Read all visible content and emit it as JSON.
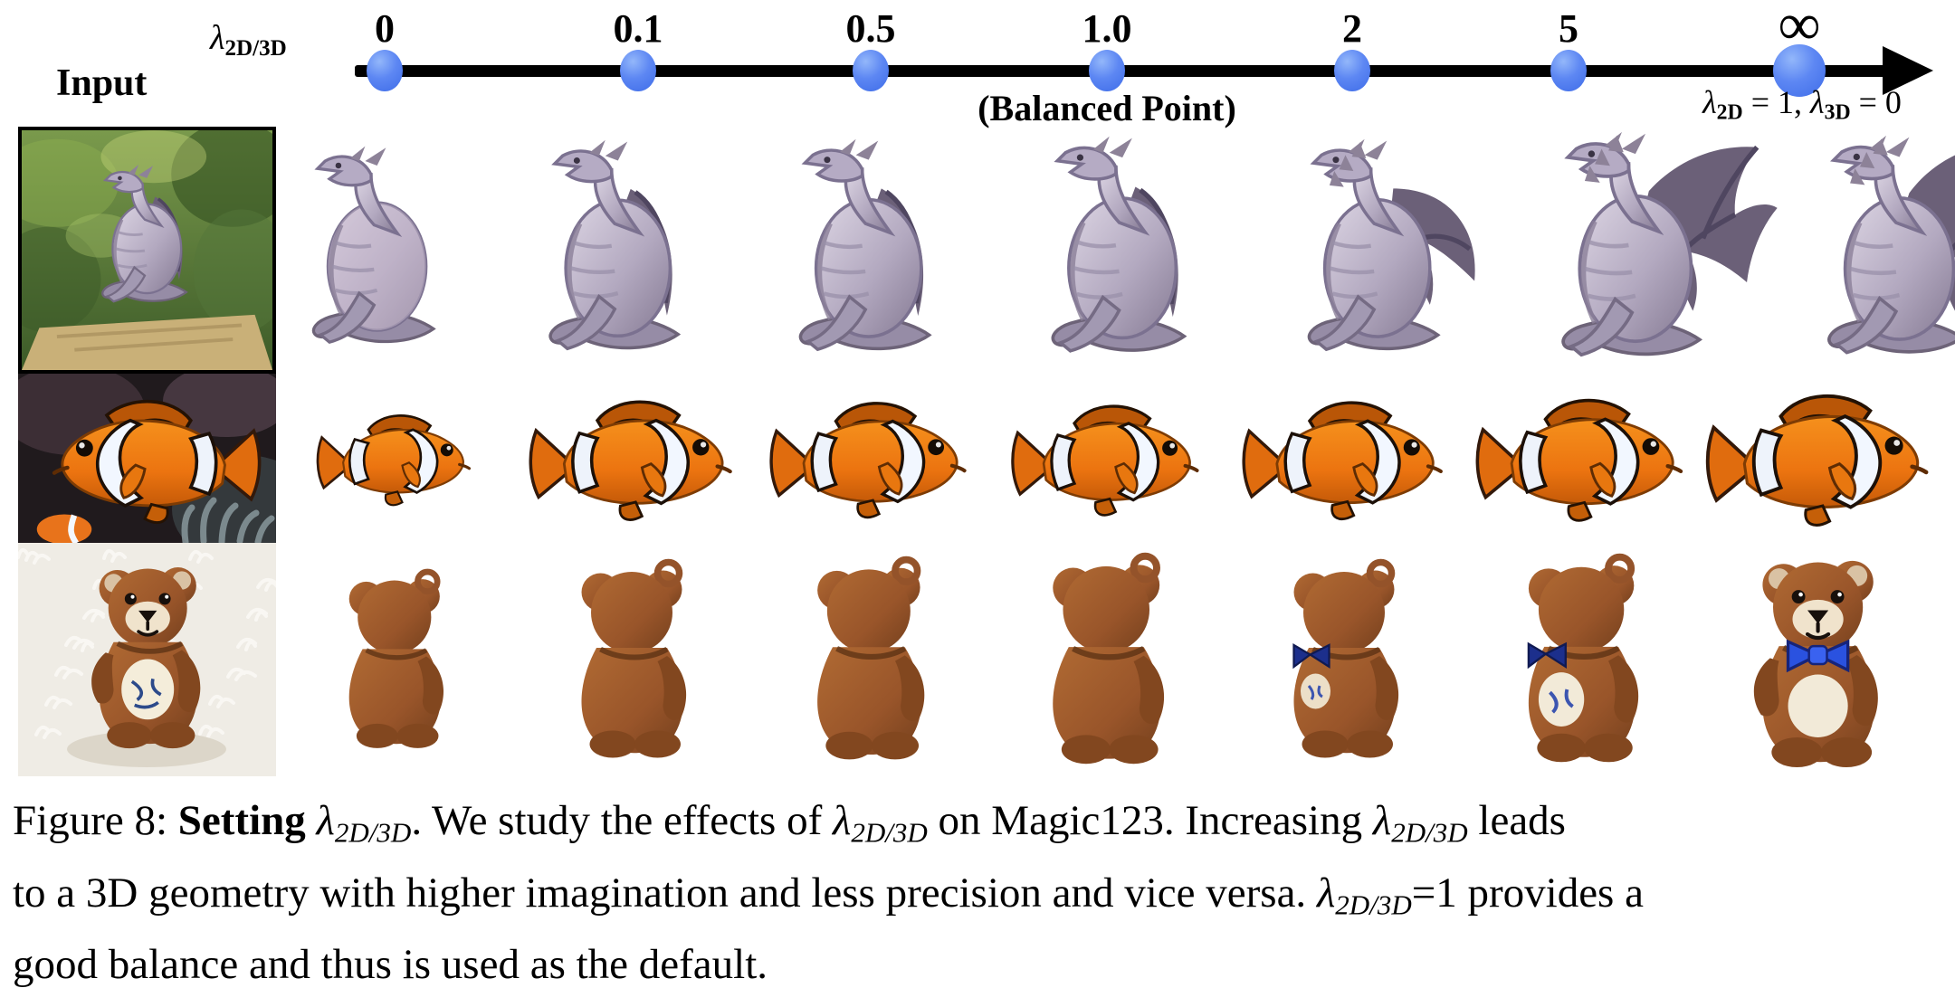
{
  "figure": {
    "input_label": "Input",
    "axis": {
      "parameter_label_segments": [
        {
          "t": "λ",
          "s": "i"
        },
        {
          "t": "2D/3D",
          "s": "subb"
        }
      ],
      "ticks": [
        "0",
        "0.1",
        "0.5",
        "1.0",
        "2",
        "5",
        "∞"
      ],
      "balanced_point_label": "(Balanced Point)",
      "end_condition_segments": [
        {
          "t": "λ",
          "s": "i"
        },
        {
          "t": "2D",
          "s": "subb"
        },
        {
          "t": " = 1, ",
          "s": "n"
        },
        {
          "t": "λ",
          "s": "i"
        },
        {
          "t": "3D",
          "s": "subb"
        },
        {
          "t": " = 0",
          "s": "n"
        }
      ],
      "dot_color": "#4a77ef",
      "line_color": "#000000"
    },
    "rows": [
      {
        "id": "dragon",
        "subject": "stone dragon statue",
        "input_scene": "gray stone dragon statue sitting in a green garden",
        "renders": [
          {
            "lambda": "0",
            "wings": "none",
            "size": 0.93
          },
          {
            "lambda": "0.1",
            "wings": "folded",
            "size": 0.99
          },
          {
            "lambda": "0.5",
            "wings": "folded",
            "size": 1.0
          },
          {
            "lambda": "1.0",
            "wings": "folded",
            "size": 1.02
          },
          {
            "lambda": "2",
            "wings": "half",
            "size": 1.0
          },
          {
            "lambda": "5",
            "wings": "spread",
            "size": 1.06
          },
          {
            "lambda": "∞",
            "wings": "spread-full",
            "size": 1.03
          }
        ]
      },
      {
        "id": "fish",
        "subject": "clownfish",
        "input_scene": "orange clownfish over a dark anemone background",
        "renders": [
          {
            "lambda": "0",
            "size": 0.8
          },
          {
            "lambda": "0.1",
            "size": 1.05
          },
          {
            "lambda": "0.5",
            "size": 1.02
          },
          {
            "lambda": "1.0",
            "size": 0.97
          },
          {
            "lambda": "2",
            "size": 1.04
          },
          {
            "lambda": "5",
            "size": 1.07
          },
          {
            "lambda": "∞",
            "size": 1.15
          }
        ]
      },
      {
        "id": "teddy",
        "subject": "teddy bear plush",
        "input_scene": "brown teddy bear sitting on white fur",
        "renders": [
          {
            "lambda": "0",
            "view": "back",
            "size": 0.9
          },
          {
            "lambda": "0.1",
            "view": "back",
            "size": 1.0
          },
          {
            "lambda": "0.5",
            "view": "back",
            "size": 1.02
          },
          {
            "lambda": "1.0",
            "view": "back",
            "size": 1.06
          },
          {
            "lambda": "2",
            "view": "back-bow",
            "size": 1.0
          },
          {
            "lambda": "5",
            "view": "back-bow-belly",
            "size": 1.05
          },
          {
            "lambda": "∞",
            "view": "front",
            "size": 1.1
          }
        ]
      }
    ],
    "caption_segments": [
      {
        "t": "Figure 8: ",
        "s": "n"
      },
      {
        "t": "Setting ",
        "s": "b"
      },
      {
        "t": "λ",
        "s": "i"
      },
      {
        "t": "2D/3D",
        "s": "subi"
      },
      {
        "t": ". We study the effects of ",
        "s": "n"
      },
      {
        "t": "λ",
        "s": "i"
      },
      {
        "t": "2D/3D",
        "s": "subi"
      },
      {
        "t": " on Magic123. Increasing ",
        "s": "n"
      },
      {
        "t": "λ",
        "s": "i"
      },
      {
        "t": "2D/3D",
        "s": "subi"
      },
      {
        "t": " leads",
        "s": "n"
      },
      {
        "s": "br"
      },
      {
        "t": "to a 3D geometry with higher imagination and less precision and vice versa. ",
        "s": "n"
      },
      {
        "t": "λ",
        "s": "i"
      },
      {
        "t": "2D/3D",
        "s": "subi"
      },
      {
        "t": "=1 provides a",
        "s": "n"
      },
      {
        "s": "br"
      },
      {
        "t": "good balance and thus is used as the default.",
        "s": "n"
      }
    ],
    "colors": {
      "stone": "#b3a9c0",
      "fish_orange": "#ec7410",
      "teddy_brown": "#99552a",
      "dot_blue": "#4a77ef"
    }
  }
}
